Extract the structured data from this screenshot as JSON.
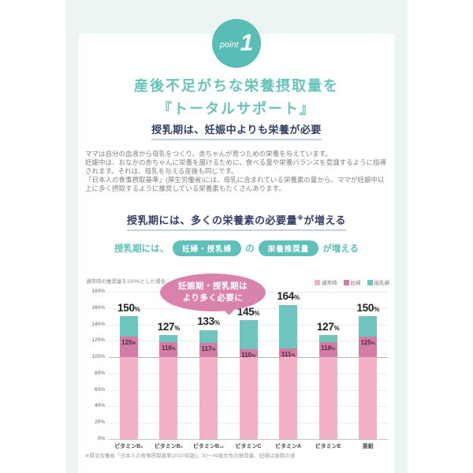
{
  "badge": {
    "label": "point",
    "number": "1"
  },
  "title": {
    "line1": "産後不足がちな栄養摂取量を",
    "line2": "『トータルサポート』"
  },
  "section1": {
    "heading": "授乳期は、妊娠中よりも栄養が必要",
    "body": "ママは自分の血液から母乳をつくり、赤ちゃんが育つための栄養を与えています。\n妊娠中は、おなかの赤ちゃんに栄養を届けるために、食べる量や栄養バランスを意識するように指導されます。それは、母乳を与える産後も同じです。\n「日本人の食事摂取基準」(厚生労働省)には、母乳に含まれている栄養素の量から、ママが妊娠中以上に多く摂取するように推奨している栄養素もたくさんあります。"
  },
  "section2": {
    "heading_main": "授乳期には、多くの栄養素の必要量",
    "heading_mark": "※",
    "heading_tail": "が増える",
    "lead_prefix": "授乳期には、",
    "badge1": "妊婦・授乳婦",
    "lead_middle": "の",
    "badge2": "栄養推奨量",
    "lead_suffix": "が増える"
  },
  "chart": {
    "note": "通常時の推奨量を100%とした場合",
    "callout": {
      "line1": "妊娠期・授乳期は",
      "line2": "より多く必要に"
    }
  },
  "chart_data": {
    "type": "bar",
    "stacked": true,
    "title": "授乳期には、多くの栄養素の必要量※が増える",
    "note": "通常時の推奨量を100%とした場合",
    "categories": [
      "ビタミンB₂",
      "ビタミンB₆",
      "ビタミンB₁₂",
      "ビタミンC",
      "ビタミンA",
      "ビタミンE",
      "亜鉛"
    ],
    "series": [
      {
        "name": "通常時",
        "values": [
          100,
          100,
          100,
          100,
          100,
          100,
          100
        ],
        "color": "#f1b0c5"
      },
      {
        "name": "妊婦",
        "values": [
          125,
          118,
          117,
          110,
          111,
          118,
          125
        ],
        "color": "#d27ca6"
      },
      {
        "name": "授乳婦",
        "values": [
          150,
          127,
          133,
          145,
          164,
          127,
          150
        ],
        "color": "#6fc5bd"
      }
    ],
    "value_suffix": "%",
    "ylim": [
      0,
      180
    ],
    "ytick_step": 20,
    "grid": true,
    "emphasized_gridline": 100,
    "legend_position": "top-right"
  },
  "footnote": "※厚生労働省「日本人の食事摂取基準(2020年版)」30〜49歳女性の推奨量、妊婦は後期の値",
  "colors": {
    "accent_teal": "#5fc0b9",
    "navy_heading": "#333f66",
    "mint_background": "#ecf5f3",
    "callout_pink": "#d983ac",
    "normal_pink": "#f1b0c5",
    "pregnant_pink": "#d27ca6",
    "lactating_teal": "#6fc5bd"
  }
}
